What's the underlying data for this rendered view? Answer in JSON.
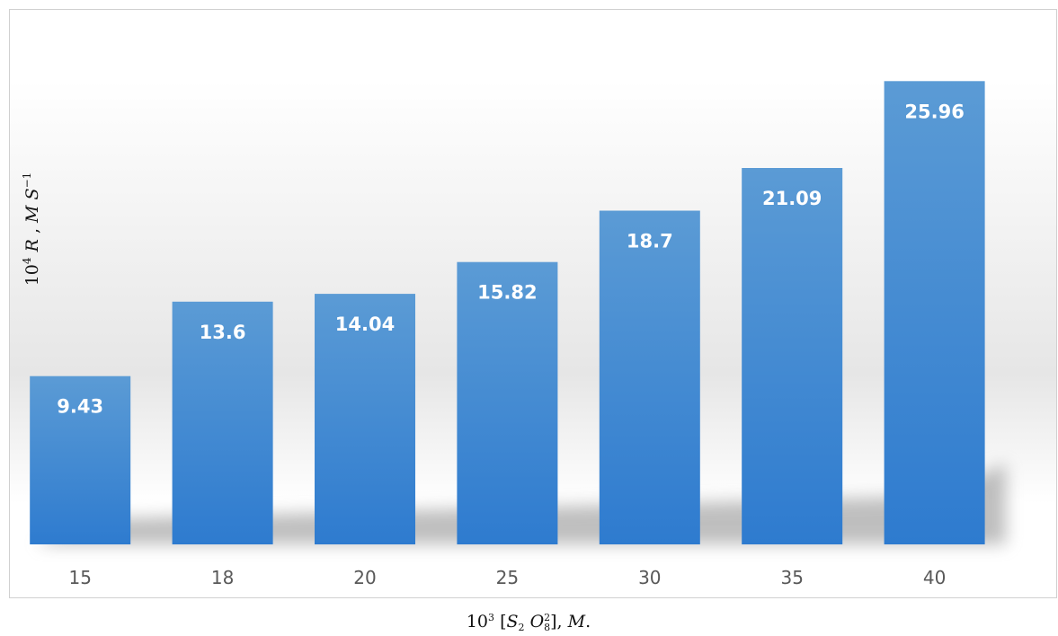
{
  "chart_data": {
    "type": "bar",
    "categories": [
      "15",
      "18",
      "20",
      "25",
      "30",
      "35",
      "40"
    ],
    "values": [
      9.43,
      13.6,
      14.04,
      15.82,
      18.7,
      21.09,
      25.96
    ],
    "data_labels": [
      "9.43",
      "13.6",
      "14.04",
      "15.82",
      "18.7",
      "21.09",
      "25.96"
    ],
    "xlabel": {
      "coef": "10",
      "coef_exp": "3",
      "pre": "[",
      "s": "S",
      "s_sub": "2",
      "o": "O",
      "o_sup": "2",
      "o_sub": "8",
      "post": "], ",
      "unit": "M",
      "end": "."
    },
    "ylabel": {
      "coef": "10",
      "coef_exp": "4",
      "r": "R",
      "sep": " , ",
      "m": "M",
      "s": "S",
      "s_exp": "−1"
    },
    "ylim": [
      0,
      30
    ],
    "grid": false,
    "legend": "none",
    "bar_color_top": "#5b9bd5",
    "bar_color_bottom": "#2e7bcf"
  }
}
